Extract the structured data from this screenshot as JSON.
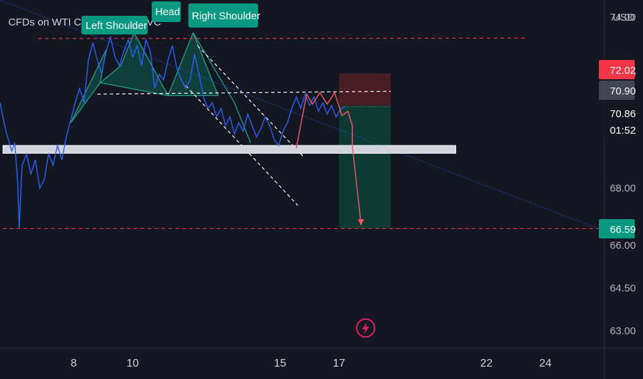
{
  "header": {
    "symbol_title": "CFDs on WTI Crude Oil, 15, TVC"
  },
  "currency_label": "USD",
  "colors": {
    "background": "#131722",
    "price_line": "#2962ff",
    "pattern_fill": "#0e5e4e",
    "pattern_line": "#22ab94",
    "stop_zone": "#4a1c24",
    "target_zone": "#0d3b33",
    "red_line": "#f23645",
    "pink_path": "#f7525f",
    "support_band": "#d1d4dc",
    "badge_red": "#f23645",
    "badge_grey": "#434651",
    "badge_teal": "#089981",
    "annotation": "#089981"
  },
  "annotations": {
    "left_shoulder": "Left Shoulder",
    "head": "Head",
    "right_shoulder": "Right Shoulder"
  },
  "price_badges": {
    "stop": "72.02",
    "entry": "70.90",
    "last": "70.86",
    "countdown": "01:52",
    "target": "66.59"
  },
  "chart_data": {
    "type": "line",
    "y_axis": {
      "ylim": [
        62.4,
        74.6
      ],
      "ticks": [
        "74.00",
        "72.00",
        "68.00",
        "66.00",
        "64.50",
        "63.00"
      ],
      "tick_values": [
        74.0,
        72.0,
        68.0,
        66.0,
        64.5,
        63.0
      ]
    },
    "x_axis": {
      "xlim": [
        5.5,
        26.0
      ],
      "ticks": [
        "8",
        "10",
        "15",
        "17",
        "22",
        "24"
      ],
      "tick_values": [
        8,
        10,
        15,
        17,
        22,
        24
      ]
    },
    "series": [
      {
        "x": [
          5.5,
          5.7,
          5.9,
          6.0,
          6.1,
          6.15,
          6.25,
          6.4,
          6.55,
          6.7,
          6.85,
          7.0,
          7.15,
          7.3,
          7.45,
          7.6,
          7.75,
          7.9,
          8.05,
          8.2,
          8.35,
          8.5,
          8.65,
          8.8,
          8.95,
          9.1,
          9.25,
          9.4,
          9.55,
          9.7,
          9.85,
          10.0,
          10.15,
          10.3,
          10.45,
          10.6,
          10.75,
          10.9,
          11.05,
          11.2,
          11.35,
          11.5,
          11.65,
          11.8,
          11.95,
          12.1,
          12.25,
          12.4,
          12.55,
          12.7,
          12.85,
          13.0,
          13.15,
          13.3,
          13.45,
          13.6,
          13.75,
          13.9,
          14.05,
          14.2,
          14.35,
          14.5,
          14.65,
          14.8,
          14.95,
          15.1,
          15.25,
          15.4,
          15.55,
          15.7,
          15.85,
          16.0,
          16.15,
          16.3,
          16.45,
          16.6,
          16.75,
          16.9,
          17.0,
          17.1,
          17.2
        ],
        "y": [
          71.0,
          70.0,
          69.3,
          69.6,
          68.2,
          66.6,
          68.8,
          69.2,
          68.5,
          69.0,
          68.0,
          68.3,
          69.2,
          68.8,
          69.5,
          69.0,
          69.8,
          70.4,
          71.0,
          71.5,
          71.0,
          72.5,
          73.1,
          72.5,
          72.0,
          72.8,
          73.3,
          72.6,
          72.3,
          72.8,
          73.2,
          72.6,
          73.0,
          72.3,
          73.2,
          72.8,
          71.5,
          72.0,
          71.8,
          72.5,
          73.0,
          72.2,
          71.8,
          71.5,
          71.8,
          72.7,
          72.0,
          71.2,
          70.8,
          71.0,
          70.5,
          70.8,
          70.2,
          70.5,
          69.9,
          70.3,
          70.0,
          70.6,
          70.2,
          69.8,
          70.1,
          70.5,
          70.2,
          69.7,
          69.5,
          70.0,
          70.3,
          70.8,
          71.2,
          70.8,
          71.3,
          70.9,
          71.2,
          70.7,
          71.0,
          70.6,
          70.9,
          70.5,
          70.7,
          70.8,
          70.86
        ]
      }
    ],
    "levels": {
      "stop": 72.02,
      "entry": 70.9,
      "target": 66.59,
      "last": 70.86,
      "resistance": 73.25,
      "neckline": 71.25
    },
    "pattern": {
      "points_x": [
        9.1,
        10.05,
        11.2,
        12.05,
        12.9,
        14.2,
        15.1,
        14.15
      ],
      "points_y": [
        72.85,
        73.45,
        71.25,
        73.45,
        71.25,
        71.0,
        70.9,
        69.5
      ]
    }
  }
}
